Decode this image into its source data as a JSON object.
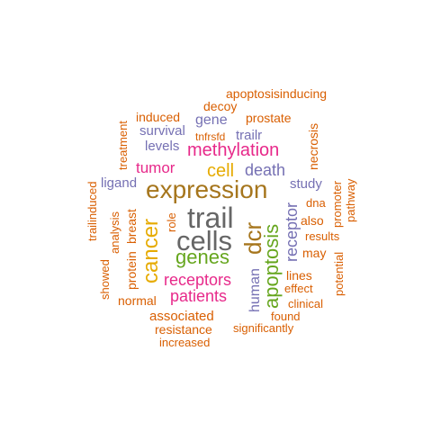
{
  "palette": {
    "orange": "#D95F02",
    "purple": "#7570B3",
    "magenta": "#E7298A",
    "green": "#66A61E",
    "gold": "#E6AB02",
    "brown": "#A6761D",
    "gray": "#666666"
  },
  "words": [
    {
      "text": "trail",
      "color": "gray"
    },
    {
      "text": "cells",
      "color": "gray"
    },
    {
      "text": "expression",
      "color": "brown"
    },
    {
      "text": "cancer",
      "color": "gold"
    },
    {
      "text": "dcr",
      "color": "brown"
    },
    {
      "text": "apoptosis",
      "color": "green"
    },
    {
      "text": "genes",
      "color": "green"
    },
    {
      "text": "methylation",
      "color": "magenta"
    },
    {
      "text": "receptors",
      "color": "magenta"
    },
    {
      "text": "patients",
      "color": "magenta"
    },
    {
      "text": "cell",
      "color": "gold"
    },
    {
      "text": "death",
      "color": "purple"
    },
    {
      "text": "receptor",
      "color": "purple"
    },
    {
      "text": "tumor",
      "color": "magenta"
    },
    {
      "text": "human",
      "color": "purple"
    },
    {
      "text": "study",
      "color": "purple"
    },
    {
      "text": "ligand",
      "color": "purple"
    },
    {
      "text": "associated",
      "color": "orange"
    },
    {
      "text": "gene",
      "color": "purple"
    },
    {
      "text": "trailr",
      "color": "purple"
    },
    {
      "text": "survival",
      "color": "purple"
    },
    {
      "text": "levels",
      "color": "purple"
    },
    {
      "text": "prostate",
      "color": "orange"
    },
    {
      "text": "apoptosisinducing",
      "color": "orange"
    },
    {
      "text": "decoy",
      "color": "orange"
    },
    {
      "text": "induced",
      "color": "orange"
    },
    {
      "text": "tnfrsfd",
      "color": "orange"
    },
    {
      "text": "necrosis",
      "color": "orange"
    },
    {
      "text": "treatment",
      "color": "orange"
    },
    {
      "text": "dna",
      "color": "orange"
    },
    {
      "text": "also",
      "color": "orange"
    },
    {
      "text": "results",
      "color": "orange"
    },
    {
      "text": "may",
      "color": "orange"
    },
    {
      "text": "promoter",
      "color": "orange"
    },
    {
      "text": "pathway",
      "color": "orange"
    },
    {
      "text": "potential",
      "color": "orange"
    },
    {
      "text": "lines",
      "color": "orange"
    },
    {
      "text": "effect",
      "color": "orange"
    },
    {
      "text": "clinical",
      "color": "orange"
    },
    {
      "text": "found",
      "color": "orange"
    },
    {
      "text": "significantly",
      "color": "orange"
    },
    {
      "text": "increased",
      "color": "orange"
    },
    {
      "text": "resistance",
      "color": "orange"
    },
    {
      "text": "normal",
      "color": "orange"
    },
    {
      "text": "role",
      "color": "orange"
    },
    {
      "text": "protein",
      "color": "orange"
    },
    {
      "text": "breast",
      "color": "orange"
    },
    {
      "text": "analysis",
      "color": "orange"
    },
    {
      "text": "trailinduced",
      "color": "orange"
    },
    {
      "text": "showed",
      "color": "orange"
    }
  ]
}
